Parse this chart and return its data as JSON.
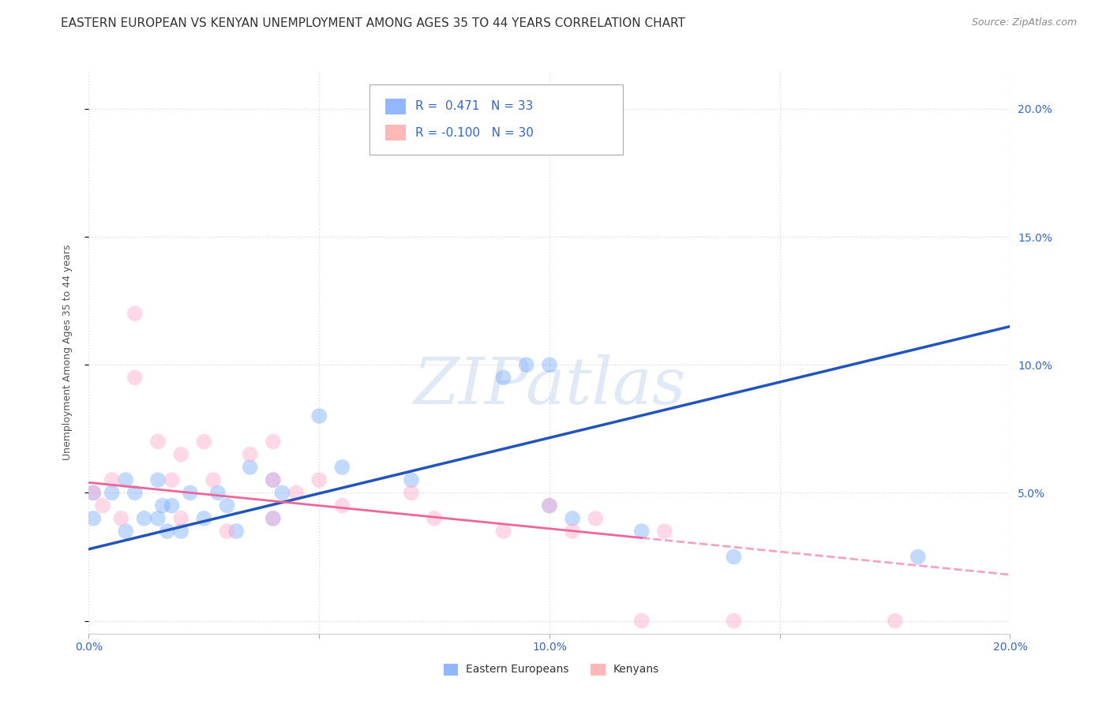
{
  "title": "EASTERN EUROPEAN VS KENYAN UNEMPLOYMENT AMONG AGES 35 TO 44 YEARS CORRELATION CHART",
  "source": "Source: ZipAtlas.com",
  "ylabel": "Unemployment Among Ages 35 to 44 years",
  "xlim": [
    0.0,
    0.2
  ],
  "ylim": [
    -0.005,
    0.215
  ],
  "yticks": [
    0.0,
    0.05,
    0.1,
    0.15,
    0.2
  ],
  "xticks": [
    0.0,
    0.05,
    0.1,
    0.15,
    0.2
  ],
  "xticklabels": [
    "0.0%",
    "",
    "10.0%",
    "",
    "20.0%"
  ],
  "yticklabels_right": [
    "",
    "5.0%",
    "10.0%",
    "15.0%",
    "20.0%"
  ],
  "legend_label1": "R =  0.471   N = 33",
  "legend_label2": "R = -0.100   N = 30",
  "legend_color1": "#6699ff",
  "legend_color2": "#ff9999",
  "eastern_europeans_x": [
    0.001,
    0.001,
    0.005,
    0.008,
    0.008,
    0.01,
    0.012,
    0.015,
    0.015,
    0.016,
    0.017,
    0.018,
    0.02,
    0.022,
    0.025,
    0.028,
    0.03,
    0.032,
    0.035,
    0.04,
    0.04,
    0.042,
    0.05,
    0.055,
    0.07,
    0.09,
    0.095,
    0.1,
    0.1,
    0.105,
    0.12,
    0.14,
    0.18
  ],
  "eastern_europeans_y": [
    0.05,
    0.04,
    0.05,
    0.055,
    0.035,
    0.05,
    0.04,
    0.055,
    0.04,
    0.045,
    0.035,
    0.045,
    0.035,
    0.05,
    0.04,
    0.05,
    0.045,
    0.035,
    0.06,
    0.04,
    0.055,
    0.05,
    0.08,
    0.06,
    0.055,
    0.095,
    0.1,
    0.1,
    0.045,
    0.04,
    0.035,
    0.025,
    0.025
  ],
  "eastern_europeans_color": "#7aadff",
  "kenyans_x": [
    0.001,
    0.003,
    0.005,
    0.007,
    0.01,
    0.01,
    0.015,
    0.018,
    0.02,
    0.02,
    0.025,
    0.027,
    0.03,
    0.035,
    0.04,
    0.04,
    0.04,
    0.045,
    0.05,
    0.055,
    0.07,
    0.075,
    0.09,
    0.1,
    0.105,
    0.11,
    0.12,
    0.125,
    0.14,
    0.175
  ],
  "kenyans_y": [
    0.05,
    0.045,
    0.055,
    0.04,
    0.12,
    0.095,
    0.07,
    0.055,
    0.065,
    0.04,
    0.07,
    0.055,
    0.035,
    0.065,
    0.07,
    0.055,
    0.04,
    0.05,
    0.055,
    0.045,
    0.05,
    0.04,
    0.035,
    0.045,
    0.035,
    0.04,
    0.0,
    0.035,
    0.0,
    0.0
  ],
  "kenyans_color": "#ffaacc",
  "ee_trend_x0": 0.0,
  "ee_trend_y0": 0.028,
  "ee_trend_x1": 0.2,
  "ee_trend_y1": 0.115,
  "ken_trend_x0": 0.0,
  "ken_trend_y0": 0.054,
  "ken_trend_x1": 0.2,
  "ken_trend_y1": 0.018,
  "ee_trend_color": "#2255bb",
  "ken_trend_color": "#ee6699",
  "watermark": "ZIPatlas",
  "background_color": "#ffffff",
  "grid_color": "#dddddd",
  "title_fontsize": 11,
  "source_fontsize": 9,
  "axis_label_fontsize": 9,
  "tick_fontsize": 10,
  "legend_fontsize": 11,
  "marker_size": 200,
  "marker_alpha": 0.45,
  "legend_bottom_label1": "Eastern Europeans",
  "legend_bottom_label2": "Kenyans"
}
